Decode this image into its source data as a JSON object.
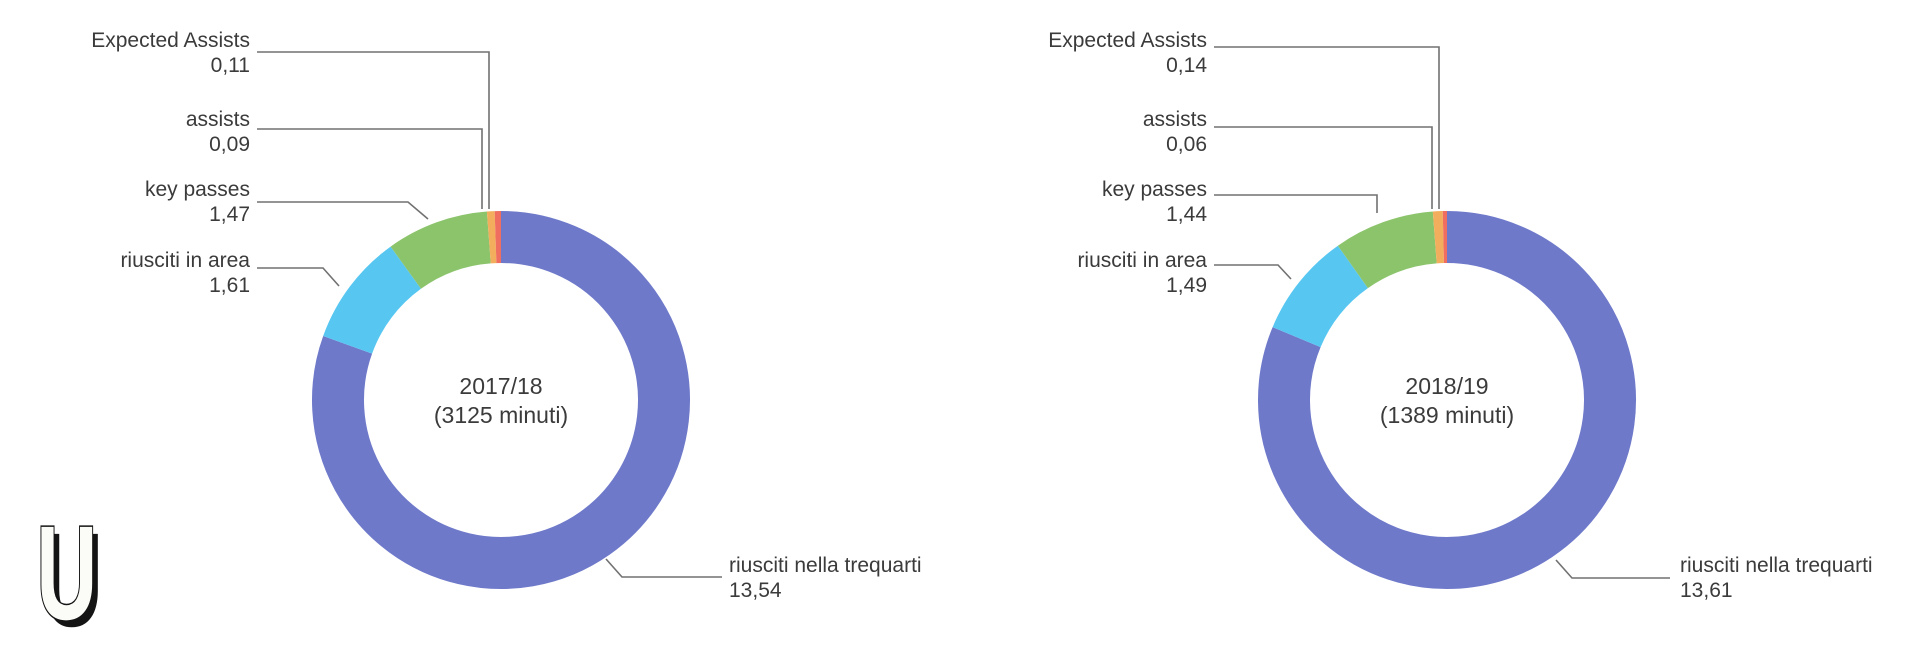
{
  "background_color": "#ffffff",
  "text_color": "#3b3b3b",
  "leader_line_color": "#717171",
  "logo": {
    "letter": "U"
  },
  "chart_data": [
    {
      "type": "pie",
      "variant": "donut",
      "season": "2017/18",
      "minutes_label": "(3125 minuti)",
      "legend_position": "callout-labels",
      "segments": [
        {
          "label": "riusciti nella trequarti",
          "value": 13.54,
          "value_display": "13,54",
          "color": "#6E79CA"
        },
        {
          "label": "riusciti in area",
          "value": 1.61,
          "value_display": "1,61",
          "color": "#57C7F2"
        },
        {
          "label": "key passes",
          "value": 1.47,
          "value_display": "1,47",
          "color": "#8CC46C"
        },
        {
          "label": "Expected Assists",
          "value": 0.11,
          "value_display": "0,11",
          "color": "#F3AE5D"
        },
        {
          "label": "assists",
          "value": 0.09,
          "value_display": "0,09",
          "color": "#EF6E5F"
        }
      ]
    },
    {
      "type": "pie",
      "variant": "donut",
      "season": "2018/19",
      "minutes_label": "(1389 minuti)",
      "legend_position": "callout-labels",
      "segments": [
        {
          "label": "riusciti nella trequarti",
          "value": 13.61,
          "value_display": "13,61",
          "color": "#6E79CA"
        },
        {
          "label": "riusciti in area",
          "value": 1.49,
          "value_display": "1,49",
          "color": "#57C7F2"
        },
        {
          "label": "key passes",
          "value": 1.44,
          "value_display": "1,44",
          "color": "#8CC46C"
        },
        {
          "label": "Expected Assists",
          "value": 0.14,
          "value_display": "0,14",
          "color": "#F3AE5D"
        },
        {
          "label": "assists",
          "value": 0.06,
          "value_display": "0,06",
          "color": "#EF6E5F"
        }
      ]
    }
  ]
}
